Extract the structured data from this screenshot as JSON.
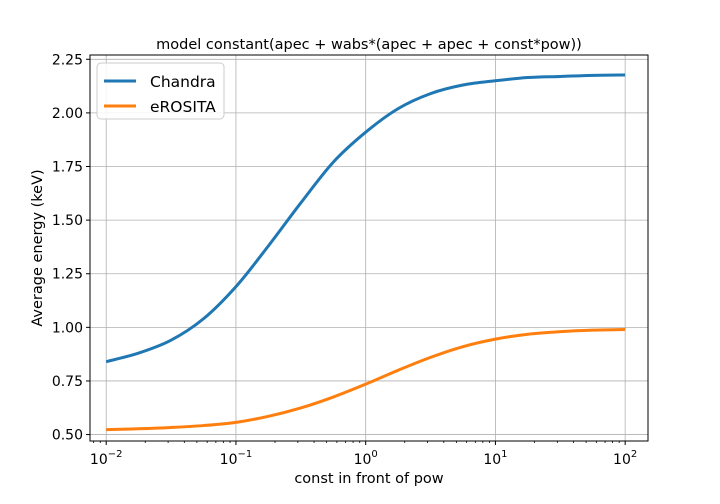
{
  "chart_data": {
    "type": "line",
    "title": "model constant(apec + wabs*(apec + apec + const*pow))",
    "xlabel": "const in front of pow",
    "ylabel": "Average energy (keV)",
    "xscale": "log",
    "xlim": [
      0.0075,
      150
    ],
    "ylim": [
      0.47,
      2.27
    ],
    "xticks": [
      {
        "value": 0.01,
        "base": "10",
        "exp": "−2"
      },
      {
        "value": 0.1,
        "base": "10",
        "exp": "−1"
      },
      {
        "value": 1,
        "base": "10",
        "exp": "0"
      },
      {
        "value": 10,
        "base": "10",
        "exp": "1"
      },
      {
        "value": 100,
        "base": "10",
        "exp": "2"
      }
    ],
    "yticks": [
      {
        "value": 0.5,
        "label": "0.50"
      },
      {
        "value": 0.75,
        "label": "0.75"
      },
      {
        "value": 1.0,
        "label": "1.00"
      },
      {
        "value": 1.25,
        "label": "1.25"
      },
      {
        "value": 1.5,
        "label": "1.50"
      },
      {
        "value": 1.75,
        "label": "1.75"
      },
      {
        "value": 2.0,
        "label": "2.00"
      },
      {
        "value": 2.25,
        "label": "2.25"
      }
    ],
    "grid": true,
    "legend_position": "top-left",
    "series": [
      {
        "name": "Chandra",
        "color": "#1f77b4",
        "x": [
          0.01,
          0.0178,
          0.0316,
          0.0562,
          0.1,
          0.178,
          0.316,
          0.562,
          1,
          1.78,
          3.16,
          5.62,
          10,
          17.8,
          31.6,
          56.2,
          100
        ],
        "y": [
          0.84,
          0.88,
          0.94,
          1.04,
          1.19,
          1.38,
          1.58,
          1.77,
          1.91,
          2.02,
          2.09,
          2.13,
          2.15,
          2.165,
          2.17,
          2.175,
          2.177
        ]
      },
      {
        "name": "eROSITA",
        "color": "#ff7f0e",
        "x": [
          0.01,
          0.0178,
          0.0316,
          0.0562,
          0.1,
          0.178,
          0.316,
          0.562,
          1,
          1.78,
          3.16,
          5.62,
          10,
          17.8,
          31.6,
          56.2,
          100
        ],
        "y": [
          0.523,
          0.527,
          0.533,
          0.542,
          0.557,
          0.585,
          0.624,
          0.675,
          0.735,
          0.8,
          0.86,
          0.91,
          0.945,
          0.968,
          0.98,
          0.987,
          0.99
        ]
      }
    ]
  }
}
